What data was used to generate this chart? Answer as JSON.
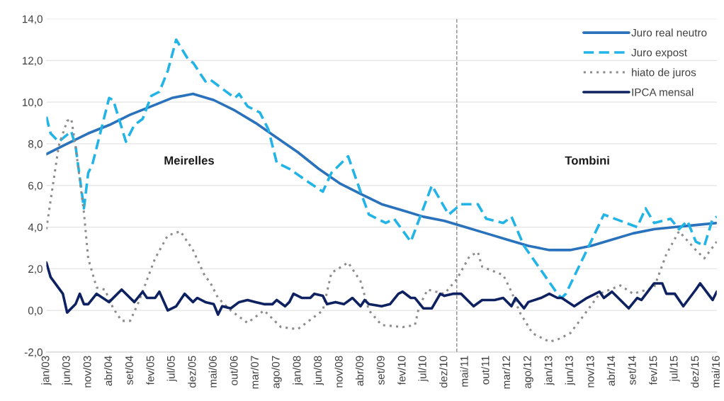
{
  "chart_data": {
    "type": "line",
    "xlim": [
      "2003-01",
      "2016-05"
    ],
    "xticks": [
      {
        "value": "2003-01",
        "label": "jan/03"
      },
      {
        "value": "2003-06",
        "label": "jun/03"
      },
      {
        "value": "2003-11",
        "label": "nov/03"
      },
      {
        "value": "2004-04",
        "label": "abr/04"
      },
      {
        "value": "2004-09",
        "label": "set/04"
      },
      {
        "value": "2005-02",
        "label": "fev/05"
      },
      {
        "value": "2005-07",
        "label": "jul/05"
      },
      {
        "value": "2005-12",
        "label": "dez/05"
      },
      {
        "value": "2006-05",
        "label": "mai/06"
      },
      {
        "value": "2006-10",
        "label": "out/06"
      },
      {
        "value": "2007-03",
        "label": "mar/07"
      },
      {
        "value": "2007-08",
        "label": "ago/07"
      },
      {
        "value": "2008-01",
        "label": "jan/08"
      },
      {
        "value": "2008-06",
        "label": "jun/08"
      },
      {
        "value": "2008-11",
        "label": "nov/08"
      },
      {
        "value": "2009-04",
        "label": "abr/09"
      },
      {
        "value": "2009-09",
        "label": "set/09"
      },
      {
        "value": "2010-02",
        "label": "fev/10"
      },
      {
        "value": "2010-07",
        "label": "jul/10"
      },
      {
        "value": "2010-12",
        "label": "dez/10"
      },
      {
        "value": "2011-05",
        "label": "mai/11"
      },
      {
        "value": "2011-10",
        "label": "out/11"
      },
      {
        "value": "2012-03",
        "label": "mar/12"
      },
      {
        "value": "2012-08",
        "label": "ago/12"
      },
      {
        "value": "2013-01",
        "label": "jan/13"
      },
      {
        "value": "2013-06",
        "label": "jun/13"
      },
      {
        "value": "2013-11",
        "label": "nov/13"
      },
      {
        "value": "2014-04",
        "label": "abr/14"
      },
      {
        "value": "2014-09",
        "label": "set/14"
      },
      {
        "value": "2015-02",
        "label": "fev/15"
      },
      {
        "value": "2015-07",
        "label": "jul/15"
      },
      {
        "value": "2015-12",
        "label": "dez/15"
      },
      {
        "value": "2016-05",
        "label": "mai/16"
      }
    ],
    "ylim": [
      -2,
      14
    ],
    "yticks": [
      {
        "value": -2,
        "label": "-2,0"
      },
      {
        "value": 0,
        "label": "0,0"
      },
      {
        "value": 2,
        "label": "2,0"
      },
      {
        "value": 4,
        "label": "4,0"
      },
      {
        "value": 6,
        "label": "6,0"
      },
      {
        "value": 8,
        "label": "8,0"
      },
      {
        "value": 10,
        "label": "10,0"
      },
      {
        "value": 12,
        "label": "12,0"
      },
      {
        "value": 14,
        "label": "14,0"
      }
    ],
    "grid": "y",
    "legend": "top right",
    "ref_lines": [
      {
        "axis": "x",
        "value": "2011-03",
        "color": "#7f7f7f",
        "line_style": "dashed"
      }
    ],
    "annotations": [
      "Meirelles",
      "Tombini"
    ],
    "series": [
      {
        "name": "Juro real neutro",
        "color": "#2a72bb",
        "line_style": "solid",
        "x": [
          "2003-01",
          "2003-06",
          "2003-11",
          "2004-04",
          "2004-09",
          "2005-02",
          "2005-07",
          "2005-12",
          "2006-05",
          "2006-10",
          "2007-03",
          "2007-08",
          "2008-01",
          "2008-06",
          "2008-11",
          "2009-04",
          "2009-09",
          "2010-02",
          "2010-07",
          "2010-12",
          "2011-05",
          "2011-10",
          "2012-03",
          "2012-08",
          "2013-01",
          "2013-06",
          "2013-11",
          "2014-04",
          "2014-09",
          "2015-02",
          "2015-07",
          "2015-12",
          "2016-05"
        ],
        "values": [
          7.5,
          8.0,
          8.5,
          8.9,
          9.4,
          9.8,
          10.2,
          10.4,
          10.1,
          9.6,
          9.0,
          8.3,
          7.6,
          6.8,
          6.1,
          5.6,
          5.1,
          4.8,
          4.5,
          4.3,
          4.0,
          3.7,
          3.4,
          3.1,
          2.9,
          2.9,
          3.1,
          3.4,
          3.7,
          3.9,
          4.0,
          4.1,
          4.2
        ]
      },
      {
        "name": "Juro expost",
        "color": "#22b4e6",
        "line_style": "dashed",
        "x": [
          "2003-01",
          "2003-02",
          "2003-04",
          "2003-07",
          "2003-08",
          "2003-10",
          "2003-11",
          "2003-12",
          "2004-04",
          "2004-05",
          "2004-08",
          "2004-10",
          "2004-12",
          "2005-02",
          "2005-04",
          "2005-06",
          "2005-08",
          "2005-11",
          "2005-12",
          "2006-03",
          "2006-04",
          "2006-10",
          "2006-11",
          "2007-01",
          "2007-04",
          "2007-06",
          "2007-08",
          "2007-11",
          "2008-04",
          "2008-07",
          "2008-09",
          "2009-01",
          "2009-04",
          "2009-06",
          "2009-10",
          "2009-12",
          "2010-04",
          "2010-09",
          "2011-01",
          "2011-04",
          "2011-08",
          "2011-10",
          "2012-02",
          "2012-04",
          "2012-07",
          "2013-03",
          "2013-04",
          "2013-05",
          "2013-10",
          "2014-02",
          "2014-10",
          "2014-12",
          "2015-02",
          "2015-06",
          "2015-08",
          "2015-10",
          "2015-12",
          "2016-02",
          "2016-04",
          "2016-05"
        ],
        "values": [
          9.3,
          8.5,
          8.1,
          8.6,
          7.9,
          4.9,
          6.6,
          7.0,
          10.2,
          10.1,
          8.1,
          8.9,
          9.2,
          10.3,
          10.5,
          11.5,
          13.0,
          12.0,
          11.9,
          11.0,
          11.1,
          10.2,
          10.4,
          9.8,
          9.5,
          8.7,
          7.1,
          6.8,
          6.1,
          5.7,
          6.6,
          7.4,
          5.7,
          4.6,
          4.2,
          4.4,
          3.3,
          6.0,
          4.6,
          5.1,
          5.1,
          4.4,
          4.2,
          4.5,
          3.1,
          0.8,
          0.6,
          0.8,
          2.9,
          4.6,
          4.0,
          4.9,
          4.2,
          4.4,
          3.9,
          4.3,
          3.3,
          3.1,
          4.4,
          4.5
        ]
      },
      {
        "name": "hiato de juros",
        "color": "#8c8c8c",
        "line_style": "dotted",
        "x": [
          "2003-01",
          "2003-04",
          "2003-06",
          "2003-07",
          "2003-08",
          "2003-10",
          "2003-11",
          "2004-01",
          "2004-03",
          "2004-05",
          "2004-07",
          "2004-09",
          "2004-11",
          "2005-03",
          "2005-06",
          "2005-09",
          "2005-12",
          "2006-03",
          "2006-04",
          "2006-06",
          "2006-09",
          "2007-01",
          "2007-05",
          "2007-09",
          "2008-01",
          "2008-07",
          "2008-09",
          "2009-01",
          "2009-04",
          "2009-06",
          "2009-09",
          "2010-02",
          "2010-05",
          "2010-06",
          "2010-08",
          "2010-12",
          "2011-03",
          "2011-06",
          "2011-08",
          "2011-09",
          "2012-02",
          "2012-04",
          "2012-06",
          "2012-09",
          "2013-01",
          "2013-03",
          "2013-06",
          "2013-09",
          "2014-01",
          "2014-06",
          "2014-09",
          "2015-02",
          "2015-05",
          "2015-08",
          "2015-12",
          "2016-02",
          "2016-05"
        ],
        "values": [
          3.9,
          7.9,
          9.1,
          9.2,
          7.9,
          4.7,
          2.5,
          1.1,
          1.0,
          0.1,
          -0.5,
          -0.5,
          0.4,
          2.5,
          3.6,
          3.8,
          2.9,
          1.6,
          1.4,
          0.6,
          0.0,
          -0.6,
          0.0,
          -0.8,
          -0.9,
          0.0,
          1.8,
          2.3,
          1.4,
          0.0,
          -0.7,
          -0.8,
          -0.7,
          0.2,
          1.0,
          0.8,
          1.5,
          2.6,
          2.8,
          2.1,
          1.7,
          0.9,
          -0.1,
          -1.1,
          -1.5,
          -1.4,
          -1.1,
          -0.3,
          0.8,
          1.2,
          0.8,
          1.1,
          2.7,
          3.8,
          2.9,
          2.5,
          3.3
        ]
      },
      {
        "name": "IPCA mensal",
        "color": "#0e2160",
        "line_style": "solid",
        "x": [
          "2003-01",
          "2003-02",
          "2003-05",
          "2003-06",
          "2003-08",
          "2003-09",
          "2003-10",
          "2003-11",
          "2004-01",
          "2004-04",
          "2004-07",
          "2004-10",
          "2004-12",
          "2005-01",
          "2005-03",
          "2005-04",
          "2005-06",
          "2005-08",
          "2005-10",
          "2005-12",
          "2006-01",
          "2006-03",
          "2006-05",
          "2006-06",
          "2006-07",
          "2006-09",
          "2006-11",
          "2007-01",
          "2007-03",
          "2007-05",
          "2007-07",
          "2007-08",
          "2007-10",
          "2007-11",
          "2007-12",
          "2008-02",
          "2008-04",
          "2008-05",
          "2008-07",
          "2008-08",
          "2008-10",
          "2008-12",
          "2009-02",
          "2009-04",
          "2009-05",
          "2009-06",
          "2009-09",
          "2009-11",
          "2010-01",
          "2010-02",
          "2010-04",
          "2010-05",
          "2010-07",
          "2010-09",
          "2010-11",
          "2010-12",
          "2011-02",
          "2011-04",
          "2011-07",
          "2011-09",
          "2011-12",
          "2012-02",
          "2012-04",
          "2012-05",
          "2012-07",
          "2012-08",
          "2012-11",
          "2013-01",
          "2013-03",
          "2013-04",
          "2013-07",
          "2013-10",
          "2014-01",
          "2014-02",
          "2014-04",
          "2014-08",
          "2014-10",
          "2014-11",
          "2015-02",
          "2015-04",
          "2015-05",
          "2015-07",
          "2015-09",
          "2015-12",
          "2016-01",
          "2016-04",
          "2016-05"
        ],
        "values": [
          2.3,
          1.6,
          0.8,
          -0.1,
          0.3,
          0.8,
          0.3,
          0.3,
          0.8,
          0.4,
          1.0,
          0.4,
          0.9,
          0.6,
          0.6,
          0.9,
          0.0,
          0.2,
          0.8,
          0.4,
          0.6,
          0.4,
          0.3,
          -0.2,
          0.2,
          0.1,
          0.4,
          0.5,
          0.4,
          0.3,
          0.3,
          0.5,
          0.2,
          0.4,
          0.8,
          0.6,
          0.6,
          0.8,
          0.7,
          0.3,
          0.4,
          0.3,
          0.6,
          0.2,
          0.5,
          0.3,
          0.2,
          0.3,
          0.8,
          0.9,
          0.6,
          0.6,
          0.1,
          0.1,
          0.8,
          0.7,
          0.8,
          0.8,
          0.2,
          0.5,
          0.5,
          0.6,
          0.2,
          0.6,
          0.1,
          0.4,
          0.6,
          0.8,
          0.6,
          0.6,
          0.2,
          0.6,
          0.9,
          0.6,
          0.9,
          0.1,
          0.6,
          0.5,
          1.3,
          1.3,
          0.8,
          0.8,
          0.2,
          1.0,
          1.3,
          0.5,
          0.9
        ]
      }
    ]
  }
}
